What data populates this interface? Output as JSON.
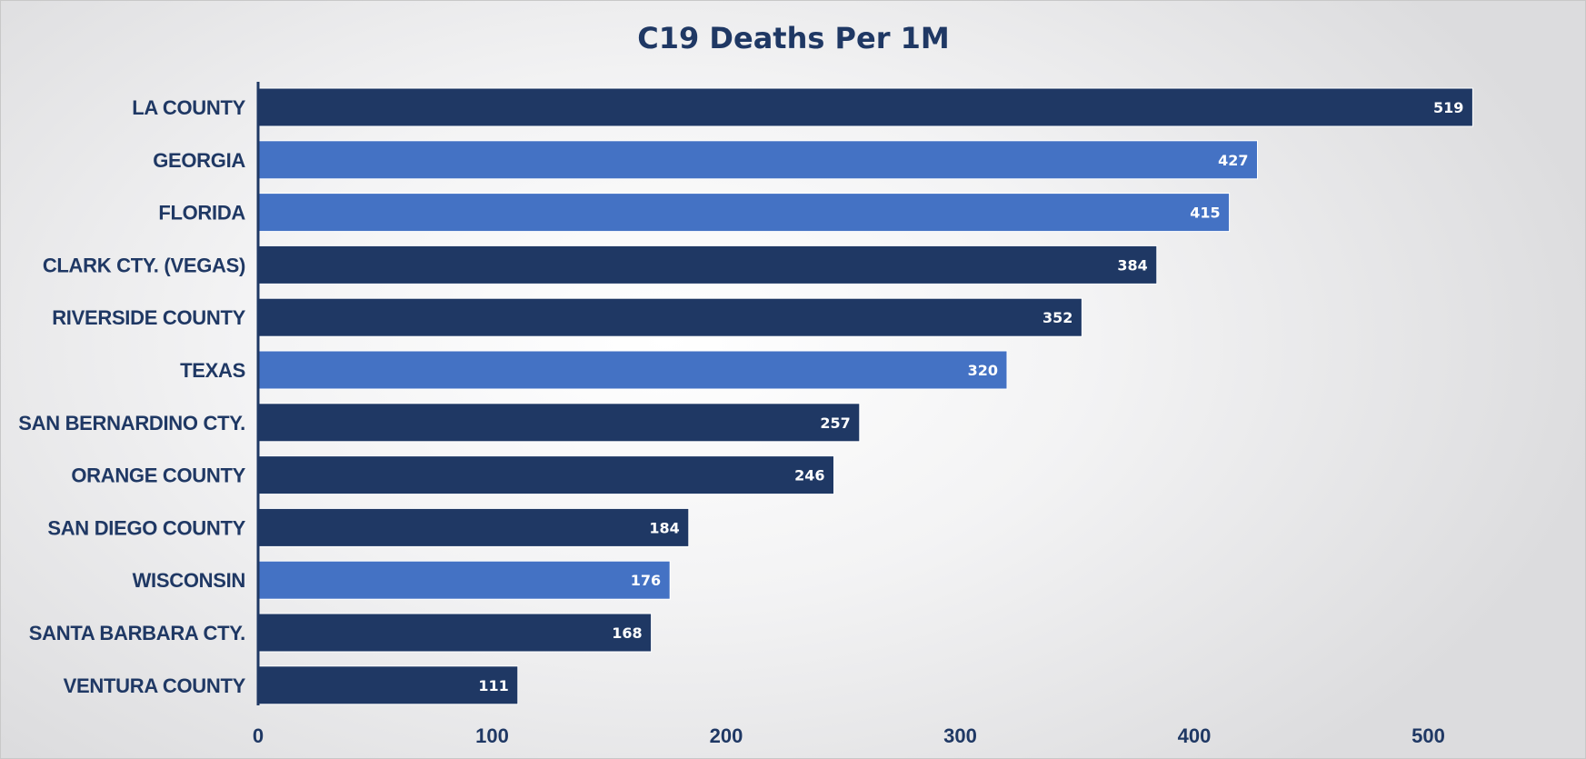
{
  "chart_data": {
    "type": "bar",
    "orientation": "horizontal",
    "title": "C19 Deaths Per 1M",
    "xlabel": "",
    "ylabel": "",
    "xlim": [
      0,
      560
    ],
    "xticks": [
      0,
      100,
      200,
      300,
      400,
      500
    ],
    "grid": false,
    "legend": "none",
    "categories": [
      "LA COUNTY",
      "GEORGIA",
      "FLORIDA",
      "CLARK CTY. (VEGAS)",
      "RIVERSIDE COUNTY",
      "TEXAS",
      "SAN BERNARDINO CTY.",
      "ORANGE COUNTY",
      "SAN DIEGO COUNTY",
      "WISCONSIN",
      "SANTA BARBARA CTY.",
      "VENTURA COUNTY"
    ],
    "values": [
      519,
      427,
      415,
      384,
      352,
      320,
      257,
      246,
      184,
      176,
      168,
      111
    ],
    "bar_colors": [
      "#1f3864",
      "#4472c4",
      "#4472c4",
      "#1f3864",
      "#1f3864",
      "#4472c4",
      "#1f3864",
      "#1f3864",
      "#1f3864",
      "#4472c4",
      "#1f3864",
      "#1f3864"
    ]
  },
  "colors": {
    "text": "#1f3864",
    "label_text": "#ffffff",
    "axis": "#1f3864"
  }
}
